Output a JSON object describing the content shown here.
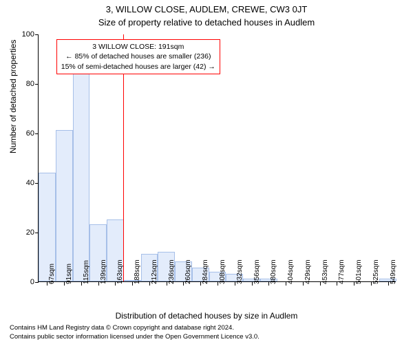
{
  "header": {
    "title": "3, WILLOW CLOSE, AUDLEM, CREWE, CW3 0JT",
    "subtitle": "Size of property relative to detached houses in Audlem"
  },
  "chart": {
    "type": "histogram",
    "background_color": "#ffffff",
    "axis_color": "#000000",
    "bar_fill": "#e3ecfb",
    "bar_stroke": "#a6bfe8",
    "bar_stroke_width": 1,
    "y": {
      "min": 0,
      "max": 100,
      "ticks": [
        0,
        20,
        40,
        60,
        80,
        100
      ],
      "label": "Number of detached properties",
      "label_fontsize": 12,
      "tick_fontsize": 11
    },
    "x": {
      "label": "Distribution of detached houses by size in Audlem",
      "label_fontsize": 12,
      "tick_fontsize": 10,
      "categories": [
        "67sqm",
        "91sqm",
        "115sqm",
        "139sqm",
        "163sqm",
        "188sqm",
        "212sqm",
        "236sqm",
        "260sqm",
        "284sqm",
        "308sqm",
        "332sqm",
        "356sqm",
        "380sqm",
        "404sqm",
        "429sqm",
        "453sqm",
        "477sqm",
        "501sqm",
        "525sqm",
        "549sqm"
      ],
      "values": [
        44,
        61,
        84,
        23,
        25,
        0.5,
        11,
        12,
        8,
        5.5,
        4,
        3,
        1,
        1,
        0,
        0,
        0,
        0,
        0,
        0,
        1
      ]
    },
    "reference_line": {
      "index_after": 4,
      "fraction_within": 0.95,
      "color": "#ff0000",
      "width": 1
    },
    "annotation": {
      "lines": [
        "3 WILLOW CLOSE: 191sqm",
        "← 85% of detached houses are smaller (236)",
        "15% of semi-detached houses are larger (42) →"
      ],
      "border_color": "#ff0000",
      "border_width": 1,
      "fontsize": 10.5,
      "left_bar_index": 1,
      "top_value": 98
    }
  },
  "footer": {
    "line1": "Contains HM Land Registry data © Crown copyright and database right 2024.",
    "line2": "Contains public sector information licensed under the Open Government Licence v3.0."
  }
}
